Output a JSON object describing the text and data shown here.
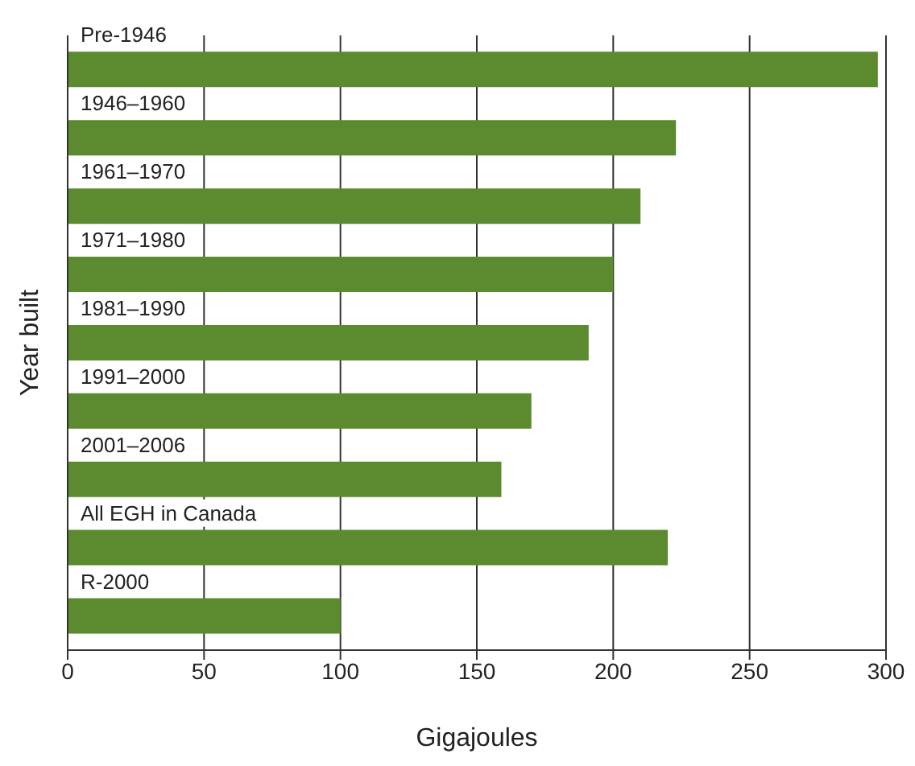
{
  "chart_data": {
    "type": "bar",
    "orientation": "horizontal",
    "xlabel": "Gigajoules",
    "ylabel": "Year built",
    "categories": [
      "Pre-1946",
      "1946–1960",
      "1961–1970",
      "1971–1980",
      "1981–1990",
      "1991–2000",
      "2001–2006",
      "All EGH in Canada",
      "R-2000"
    ],
    "values": [
      297,
      223,
      210,
      200,
      191,
      170,
      159,
      220,
      100
    ],
    "color": "#5b8a2f",
    "xlim": [
      0,
      300
    ],
    "xticks": [
      0,
      50,
      100,
      150,
      200,
      250,
      300
    ],
    "grid": "x"
  }
}
